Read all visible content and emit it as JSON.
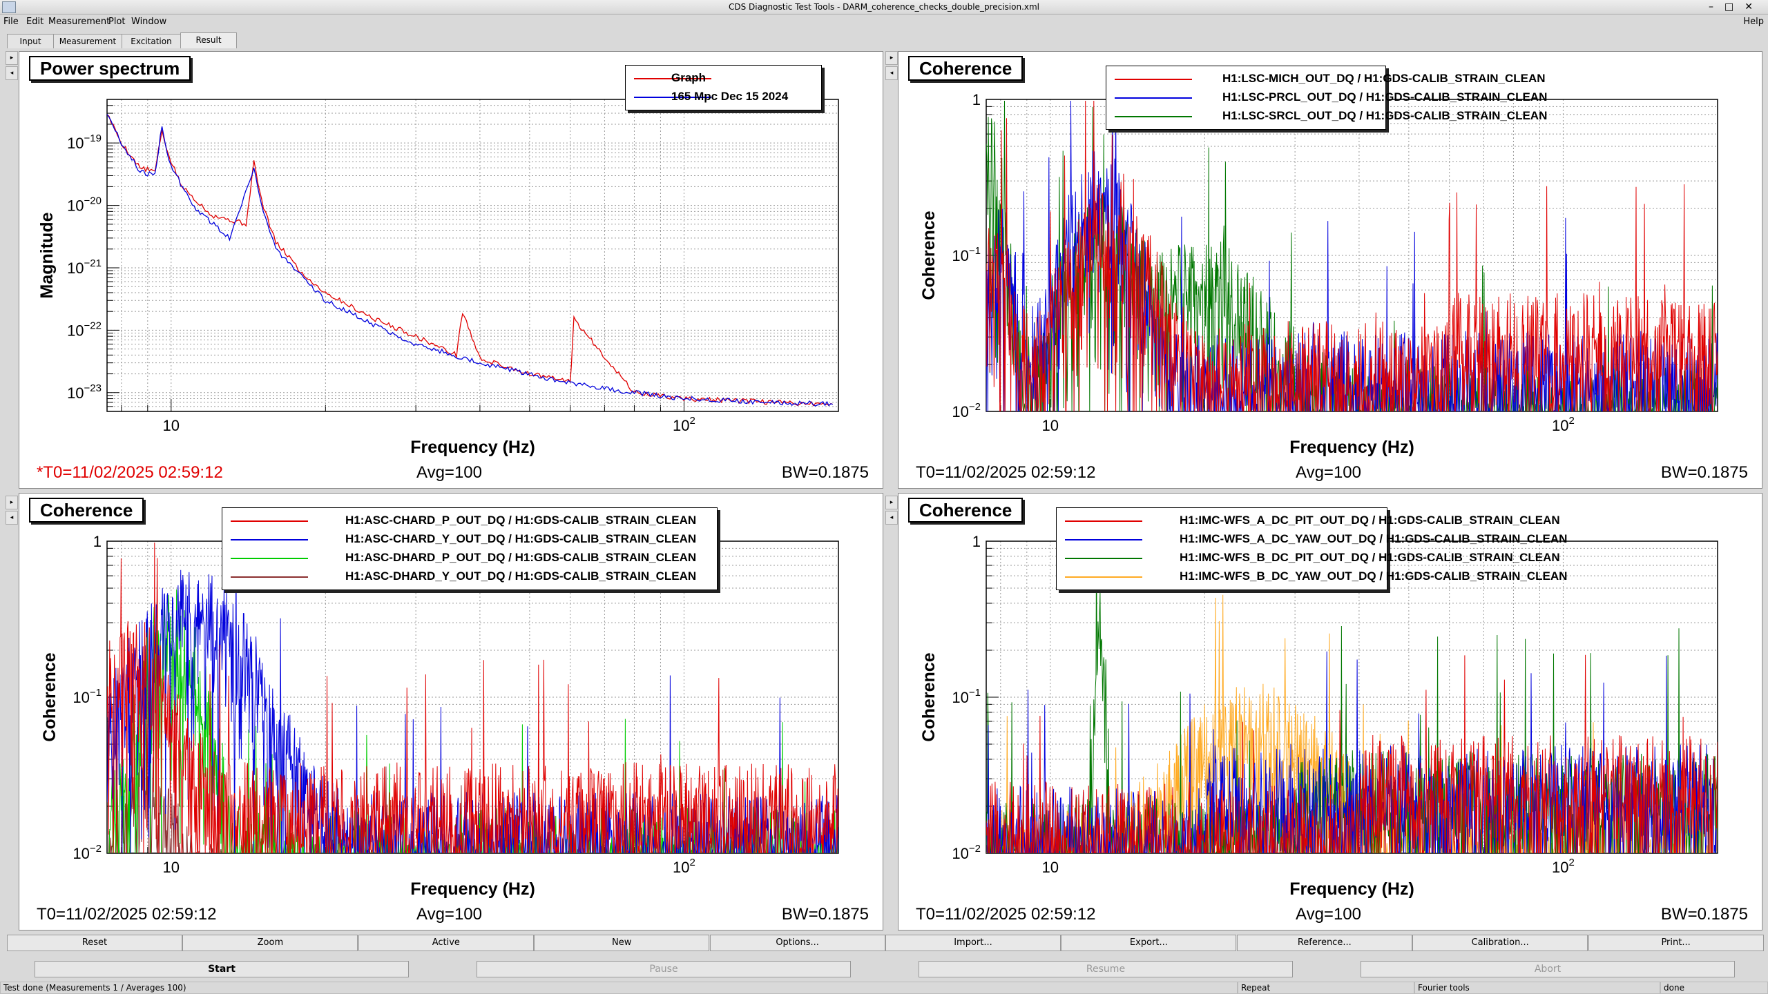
{
  "window": {
    "title": "CDS Diagnostic Test Tools - DARM_coherence_checks_double_precision.xml"
  },
  "menu": {
    "items": [
      "File",
      "Edit",
      "Measurement",
      "Plot",
      "Window"
    ],
    "help": "Help"
  },
  "tabs": [
    "Input",
    "Measurement",
    "Excitation",
    "Result"
  ],
  "colors": {
    "red": "#e00000",
    "blue": "#0000dd",
    "green_dark": "#007700",
    "green_light": "#00cc00",
    "brown": "#8b2f2f",
    "orange": "#ffaa22"
  },
  "panels": [
    {
      "title": "Power spectrum",
      "ylabel": "Magnitude",
      "xlabel": "Frequency (Hz)",
      "yticks": [
        {
          "base": "10",
          "exp": "−19"
        },
        {
          "base": "10",
          "exp": "−20"
        },
        {
          "base": "10",
          "exp": "−21"
        },
        {
          "base": "10",
          "exp": "−22"
        },
        {
          "base": "10",
          "exp": "−23"
        }
      ],
      "xticks": [
        {
          "base": "10",
          "exp": ""
        },
        {
          "base": "10",
          "exp": "2"
        }
      ],
      "legend": [
        {
          "label": "Graph",
          "color": "#e00000"
        },
        {
          "label": "165 Mpc Dec 15 2024",
          "color": "#0000dd"
        }
      ],
      "footer": {
        "t0": "*T0=11/02/2025 02:59:12",
        "avg": "Avg=100",
        "bw": "BW=0.1875",
        "t0_color": "#e00000"
      }
    },
    {
      "title": "Coherence",
      "ylabel": "Coherence",
      "xlabel": "Frequency (Hz)",
      "yticks": [
        {
          "base": "1",
          "exp": ""
        },
        {
          "base": "10",
          "exp": "−1"
        },
        {
          "base": "10",
          "exp": "−2"
        }
      ],
      "xticks": [
        {
          "base": "10",
          "exp": ""
        },
        {
          "base": "10",
          "exp": "2"
        }
      ],
      "legend": [
        {
          "label": "H1:LSC-MICH_OUT_DQ / H1:GDS-CALIB_STRAIN_CLEAN",
          "color": "#e00000"
        },
        {
          "label": "H1:LSC-PRCL_OUT_DQ / H1:GDS-CALIB_STRAIN_CLEAN",
          "color": "#0000dd"
        },
        {
          "label": "H1:LSC-SRCL_OUT_DQ / H1:GDS-CALIB_STRAIN_CLEAN",
          "color": "#007700"
        }
      ],
      "footer": {
        "t0": "T0=11/02/2025 02:59:12",
        "avg": "Avg=100",
        "bw": "BW=0.1875",
        "t0_color": "#000000"
      }
    },
    {
      "title": "Coherence",
      "ylabel": "Coherence",
      "xlabel": "Frequency (Hz)",
      "yticks": [
        {
          "base": "1",
          "exp": ""
        },
        {
          "base": "10",
          "exp": "−1"
        },
        {
          "base": "10",
          "exp": "−2"
        }
      ],
      "xticks": [
        {
          "base": "10",
          "exp": ""
        },
        {
          "base": "10",
          "exp": "2"
        }
      ],
      "legend": [
        {
          "label": "H1:ASC-CHARD_P_OUT_DQ / H1:GDS-CALIB_STRAIN_CLEAN",
          "color": "#e00000"
        },
        {
          "label": "H1:ASC-CHARD_Y_OUT_DQ / H1:GDS-CALIB_STRAIN_CLEAN",
          "color": "#0000dd"
        },
        {
          "label": "H1:ASC-DHARD_P_OUT_DQ / H1:GDS-CALIB_STRAIN_CLEAN",
          "color": "#00cc00"
        },
        {
          "label": "H1:ASC-DHARD_Y_OUT_DQ / H1:GDS-CALIB_STRAIN_CLEAN",
          "color": "#8b2f2f"
        }
      ],
      "footer": {
        "t0": "T0=11/02/2025 02:59:12",
        "avg": "Avg=100",
        "bw": "BW=0.1875",
        "t0_color": "#000000"
      }
    },
    {
      "title": "Coherence",
      "ylabel": "Coherence",
      "xlabel": "Frequency (Hz)",
      "yticks": [
        {
          "base": "1",
          "exp": ""
        },
        {
          "base": "10",
          "exp": "−1"
        },
        {
          "base": "10",
          "exp": "−2"
        }
      ],
      "xticks": [
        {
          "base": "10",
          "exp": ""
        },
        {
          "base": "10",
          "exp": "2"
        }
      ],
      "legend": [
        {
          "label": "H1:IMC-WFS_A_DC_PIT_OUT_DQ / H1:GDS-CALIB_STRAIN_CLEAN",
          "color": "#e00000"
        },
        {
          "label": "H1:IMC-WFS_A_DC_YAW_OUT_DQ / H1:GDS-CALIB_STRAIN_CLEAN",
          "color": "#0000dd"
        },
        {
          "label": "H1:IMC-WFS_B_DC_PIT_OUT_DQ / H1:GDS-CALIB_STRAIN_CLEAN",
          "color": "#007700"
        },
        {
          "label": "H1:IMC-WFS_B_DC_YAW_OUT_DQ / H1:GDS-CALIB_STRAIN_CLEAN",
          "color": "#ffaa22"
        }
      ],
      "footer": {
        "t0": "T0=11/02/2025 02:59:12",
        "avg": "Avg=100",
        "bw": "BW=0.1875",
        "t0_color": "#000000"
      }
    }
  ],
  "buttons_row1": [
    "Reset",
    "Zoom",
    "Active",
    "New",
    "Options...",
    "Import...",
    "Export...",
    "Reference...",
    "Calibration...",
    "Print..."
  ],
  "buttons_row2": [
    {
      "label": "Start",
      "enabled": true
    },
    {
      "label": "Pause",
      "enabled": false
    },
    {
      "label": "Resume",
      "enabled": false
    },
    {
      "label": "Abort",
      "enabled": false
    }
  ],
  "status": {
    "main": "Test done (Measurements 1 / Averages 100)",
    "repeat": "Repeat",
    "fourier": "Fourier tools",
    "state": "done"
  },
  "chart_data": [
    {
      "type": "line",
      "title": "Power spectrum",
      "xlabel": "Frequency (Hz)",
      "ylabel": "Magnitude",
      "xscale": "log",
      "yscale": "log",
      "xlim": [
        7.5,
        200
      ],
      "ylim": [
        5e-24,
        5e-19
      ],
      "grid": true,
      "legend_position": "top-right",
      "series": [
        {
          "name": "Graph",
          "points": [
            [
              7.5,
              3e-19
            ],
            [
              8,
              1e-19
            ],
            [
              8.7,
              4e-20
            ],
            [
              9.3,
              3.5e-20
            ],
            [
              9.6,
              1.6e-19
            ],
            [
              9.9,
              6e-20
            ],
            [
              10.5,
              2e-20
            ],
            [
              12,
              7e-21
            ],
            [
              14,
              5e-21
            ],
            [
              14.5,
              5e-20
            ],
            [
              15,
              1.2e-20
            ],
            [
              16,
              2.5e-21
            ],
            [
              17,
              1.5e-21
            ],
            [
              18,
              8e-22
            ],
            [
              20,
              4e-22
            ],
            [
              25,
              1.5e-22
            ],
            [
              30,
              8e-23
            ],
            [
              36,
              4e-23
            ],
            [
              37,
              2e-22
            ],
            [
              40,
              3.5e-23
            ],
            [
              50,
              2e-23
            ],
            [
              60,
              1.5e-23
            ],
            [
              61,
              1.5e-22
            ],
            [
              80,
              1e-23
            ],
            [
              100,
              8e-24
            ],
            [
              150,
              7e-24
            ],
            [
              195,
              6.5e-24
            ]
          ]
        },
        {
          "name": "165 Mpc Dec 15 2024",
          "points": [
            [
              7.5,
              3e-19
            ],
            [
              8,
              1e-19
            ],
            [
              8.7,
              3.5e-20
            ],
            [
              9.3,
              3e-20
            ],
            [
              9.6,
              2e-19
            ],
            [
              9.9,
              5e-20
            ],
            [
              11,
              1e-20
            ],
            [
              13,
              3e-21
            ],
            [
              14.5,
              4e-20
            ],
            [
              15,
              1e-20
            ],
            [
              16,
              2e-21
            ],
            [
              18,
              7e-22
            ],
            [
              20,
              3e-22
            ],
            [
              25,
              1.2e-22
            ],
            [
              30,
              6e-23
            ],
            [
              40,
              3e-23
            ],
            [
              50,
              2e-23
            ],
            [
              60,
              1.4e-23
            ],
            [
              80,
              1e-23
            ],
            [
              100,
              8e-24
            ],
            [
              150,
              7e-24
            ],
            [
              195,
              6.5e-24
            ]
          ]
        }
      ]
    },
    {
      "type": "line",
      "title": "Coherence",
      "xlabel": "Frequency (Hz)",
      "ylabel": "Coherence",
      "xscale": "log",
      "yscale": "log",
      "xlim": [
        7.5,
        200
      ],
      "ylim": [
        0.01,
        1
      ],
      "grid": true,
      "legend_position": "top-right",
      "series": [
        {
          "name": "H1:LSC-MICH_OUT_DQ / H1:GDS-CALIB_STRAIN_CLEAN",
          "note": "noise floor ~0.02, peaks near 12-15 Hz (~0.3)"
        },
        {
          "name": "H1:LSC-PRCL_OUT_DQ / H1:GDS-CALIB_STRAIN_CLEAN",
          "note": "broad ~0.3-0.5 around 10-15 Hz, lines to ~0.5"
        },
        {
          "name": "H1:LSC-SRCL_OUT_DQ / H1:GDS-CALIB_STRAIN_CLEAN",
          "note": "~0.5 at 7.5 Hz, ~0.1 at 20-30 Hz"
        }
      ]
    },
    {
      "type": "line",
      "title": "Coherence",
      "xlabel": "Frequency (Hz)",
      "ylabel": "Coherence",
      "xscale": "log",
      "yscale": "log",
      "xlim": [
        7.5,
        200
      ],
      "ylim": [
        0.01,
        1
      ],
      "grid": true,
      "legend_position": "top-right",
      "series": [
        {
          "name": "H1:ASC-CHARD_P_OUT_DQ / H1:GDS-CALIB_STRAIN_CLEAN",
          "note": "~0.1-0.3 below 15 Hz"
        },
        {
          "name": "H1:ASC-CHARD_Y_OUT_DQ / H1:GDS-CALIB_STRAIN_CLEAN",
          "note": "~0.5-0.6 at 10-15 Hz"
        },
        {
          "name": "H1:ASC-DHARD_P_OUT_DQ / H1:GDS-CALIB_STRAIN_CLEAN",
          "note": "~0.1-0.7 around 8-11 Hz"
        },
        {
          "name": "H1:ASC-DHARD_Y_OUT_DQ / H1:GDS-CALIB_STRAIN_CLEAN",
          "note": "low, ~0.02-0.05"
        }
      ]
    },
    {
      "type": "line",
      "title": "Coherence",
      "xlabel": "Frequency (Hz)",
      "ylabel": "Coherence",
      "xscale": "log",
      "yscale": "log",
      "xlim": [
        7.5,
        200
      ],
      "ylim": [
        0.01,
        1
      ],
      "grid": true,
      "legend_position": "top-right",
      "series": [
        {
          "name": "H1:IMC-WFS_A_DC_PIT_OUT_DQ / H1:GDS-CALIB_STRAIN_CLEAN",
          "note": "noise floor ~0.02-0.05"
        },
        {
          "name": "H1:IMC-WFS_A_DC_YAW_OUT_DQ / H1:GDS-CALIB_STRAIN_CLEAN",
          "note": "noise floor ~0.02-0.05"
        },
        {
          "name": "H1:IMC-WFS_B_DC_PIT_OUT_DQ / H1:GDS-CALIB_STRAIN_CLEAN",
          "note": "peak ~0.5 near 12.5 Hz"
        },
        {
          "name": "H1:IMC-WFS_B_DC_YAW_OUT_DQ / H1:GDS-CALIB_STRAIN_CLEAN",
          "note": "lines to ~0.2"
        }
      ]
    }
  ]
}
